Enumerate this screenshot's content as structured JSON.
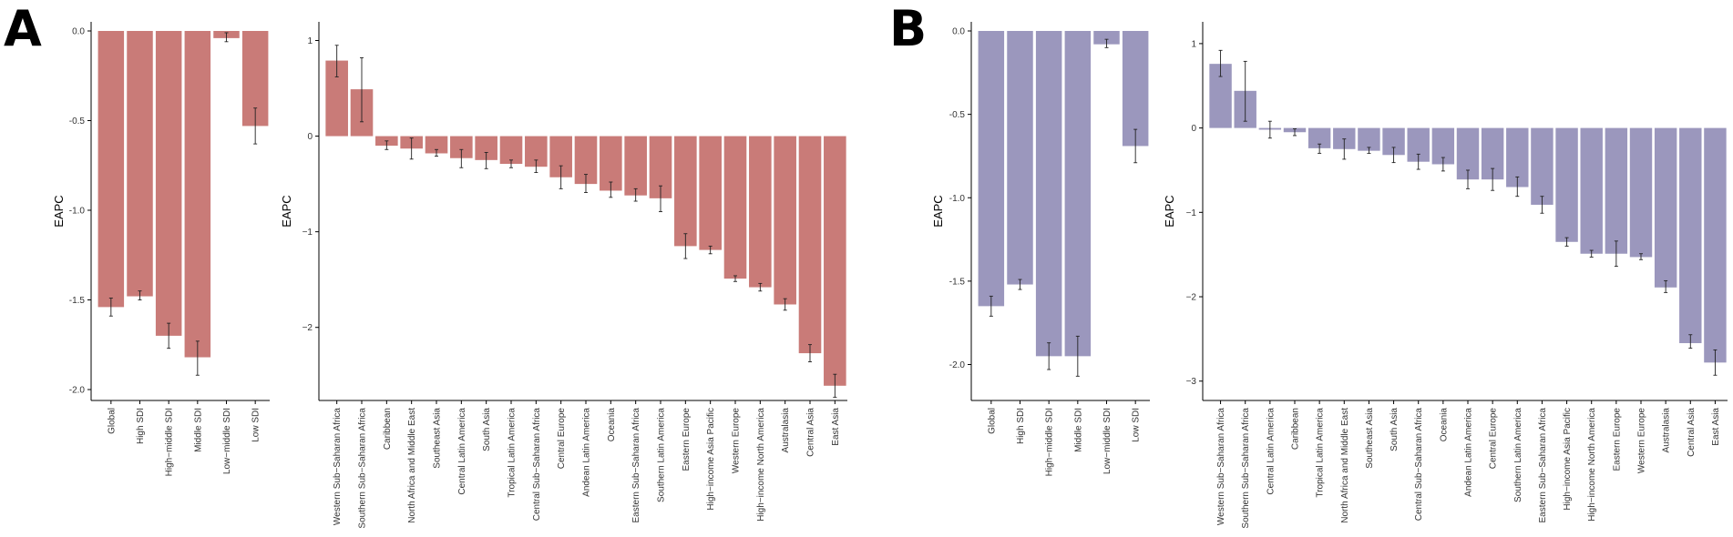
{
  "panels": [
    {
      "letter": "A",
      "color": "#c97b78"
    },
    {
      "letter": "B",
      "color": "#9b97bd"
    }
  ],
  "chart_data": [
    {
      "type": "bar",
      "panel": "A",
      "title": "",
      "xlabel": "",
      "ylabel": "EAPC",
      "ylim": [
        -2.0,
        0.0
      ],
      "yticks": [
        0.0,
        -0.5,
        -1.0,
        -1.5,
        -2.0
      ],
      "tick_labels": [
        "0.0",
        "-0.5",
        "-1.0",
        "-1.5",
        "-2.0"
      ],
      "grid": false,
      "categories": [
        "Global",
        "High SDI",
        "High−middle SDI",
        "Middle SDI",
        "Low−middle SDI",
        "Low SDI"
      ],
      "values": [
        -1.54,
        -1.48,
        -1.7,
        -1.82,
        -0.04,
        -0.53
      ],
      "error_low": [
        -1.59,
        -1.5,
        -1.77,
        -1.92,
        -0.06,
        -0.63
      ],
      "error_high": [
        -1.49,
        -1.45,
        -1.63,
        -1.73,
        -0.01,
        -0.43
      ]
    },
    {
      "type": "bar",
      "panel": "A",
      "title": "",
      "xlabel": "",
      "ylabel": "EAPC",
      "ylim": [
        -2.65,
        1.1
      ],
      "yticks": [
        1,
        0,
        -1,
        -2
      ],
      "tick_labels": [
        "1",
        "0",
        "−1",
        "−2"
      ],
      "grid": false,
      "categories": [
        "Western Sub−Saharan Africa",
        "Southern Sub−Saharan Africa",
        "Caribbean",
        "North Africa and Middle East",
        "Southeast Asia",
        "Central Latin America",
        "South Asia",
        "Tropical Latin America",
        "Central Sub−Saharan Africa",
        "Central Europe",
        "Andean Latin America",
        "Oceania",
        "Eastern Sub−Saharan Africa",
        "Southern Latin America",
        "Eastern Europe",
        "High−income Asia Pacific",
        "Western Europe",
        "High−income North America",
        "Australasia",
        "Central Asia",
        "East Asia"
      ],
      "values": [
        0.79,
        0.49,
        -0.1,
        -0.13,
        -0.18,
        -0.23,
        -0.25,
        -0.29,
        -0.32,
        -0.43,
        -0.5,
        -0.57,
        -0.62,
        -0.65,
        -1.15,
        -1.19,
        -1.49,
        -1.58,
        -1.76,
        -2.27,
        -2.61
      ],
      "error_low": [
        0.62,
        0.15,
        -0.14,
        -0.24,
        -0.21,
        -0.33,
        -0.34,
        -0.33,
        -0.38,
        -0.55,
        -0.59,
        -0.64,
        -0.68,
        -0.79,
        -1.28,
        -1.23,
        -1.52,
        -1.62,
        -1.82,
        -2.36,
        -2.73
      ],
      "error_high": [
        0.95,
        0.82,
        -0.05,
        -0.02,
        -0.14,
        -0.14,
        -0.17,
        -0.25,
        -0.25,
        -0.31,
        -0.4,
        -0.48,
        -0.55,
        -0.52,
        -1.02,
        -1.15,
        -1.46,
        -1.54,
        -1.7,
        -2.18,
        -2.49
      ]
    },
    {
      "type": "bar",
      "panel": "B",
      "title": "",
      "xlabel": "",
      "ylabel": "EAPC",
      "ylim": [
        -2.15,
        0.0
      ],
      "yticks": [
        0.0,
        -0.5,
        -1.0,
        -1.5,
        -2.0
      ],
      "tick_labels": [
        "0.0",
        "-0.5",
        "-1.0",
        "-1.5",
        "-2.0"
      ],
      "grid": false,
      "categories": [
        "Global",
        "High SDI",
        "High−middle SDI",
        "Middle SDI",
        "Low−middle SDI",
        "Low SDI"
      ],
      "values": [
        -1.65,
        -1.52,
        -1.95,
        -1.95,
        -0.08,
        -0.69
      ],
      "error_low": [
        -1.71,
        -1.55,
        -2.03,
        -2.07,
        -0.1,
        -0.79
      ],
      "error_high": [
        -1.59,
        -1.49,
        -1.87,
        -1.83,
        -0.05,
        -0.59
      ]
    },
    {
      "type": "bar",
      "panel": "B",
      "title": "",
      "xlabel": "",
      "ylabel": "EAPC",
      "ylim": [
        -3.1,
        1.15
      ],
      "yticks": [
        1,
        0,
        -1,
        -2,
        -3
      ],
      "tick_labels": [
        "1",
        "0",
        "−1",
        "−2",
        "−3"
      ],
      "grid": false,
      "categories": [
        "Western Sub−Saharan Africa",
        "Southern Sub−Saharan Africa",
        "Central Latin America",
        "Caribbean",
        "Tropical Latin America",
        "North Africa and Middle East",
        "Southeast Asia",
        "South Asia",
        "Central Sub−Saharan Africa",
        "Oceania",
        "Andean Latin America",
        "Central Europe",
        "Southern Latin America",
        "Eastern Sub−Saharan Africa",
        "High−income Asia Pacific",
        "High−income North America",
        "Eastern Europe",
        "Western Europe",
        "Australasia",
        "Central Asia",
        "East Asia"
      ],
      "values": [
        0.76,
        0.44,
        -0.02,
        -0.05,
        -0.24,
        -0.25,
        -0.27,
        -0.32,
        -0.4,
        -0.43,
        -0.61,
        -0.61,
        -0.7,
        -0.91,
        -1.35,
        -1.49,
        -1.49,
        -1.53,
        -1.89,
        -2.55,
        -2.78
      ],
      "error_low": [
        0.61,
        0.08,
        -0.12,
        -0.09,
        -0.3,
        -0.37,
        -0.3,
        -0.41,
        -0.49,
        -0.51,
        -0.72,
        -0.74,
        -0.81,
        -1.01,
        -1.4,
        -1.53,
        -1.64,
        -1.56,
        -1.95,
        -2.61,
        -2.93
      ],
      "error_high": [
        0.92,
        0.79,
        0.08,
        -0.01,
        -0.19,
        -0.13,
        -0.23,
        -0.23,
        -0.31,
        -0.35,
        -0.5,
        -0.48,
        -0.58,
        -0.81,
        -1.3,
        -1.45,
        -1.34,
        -1.49,
        -1.81,
        -2.45,
        -2.63
      ]
    }
  ]
}
